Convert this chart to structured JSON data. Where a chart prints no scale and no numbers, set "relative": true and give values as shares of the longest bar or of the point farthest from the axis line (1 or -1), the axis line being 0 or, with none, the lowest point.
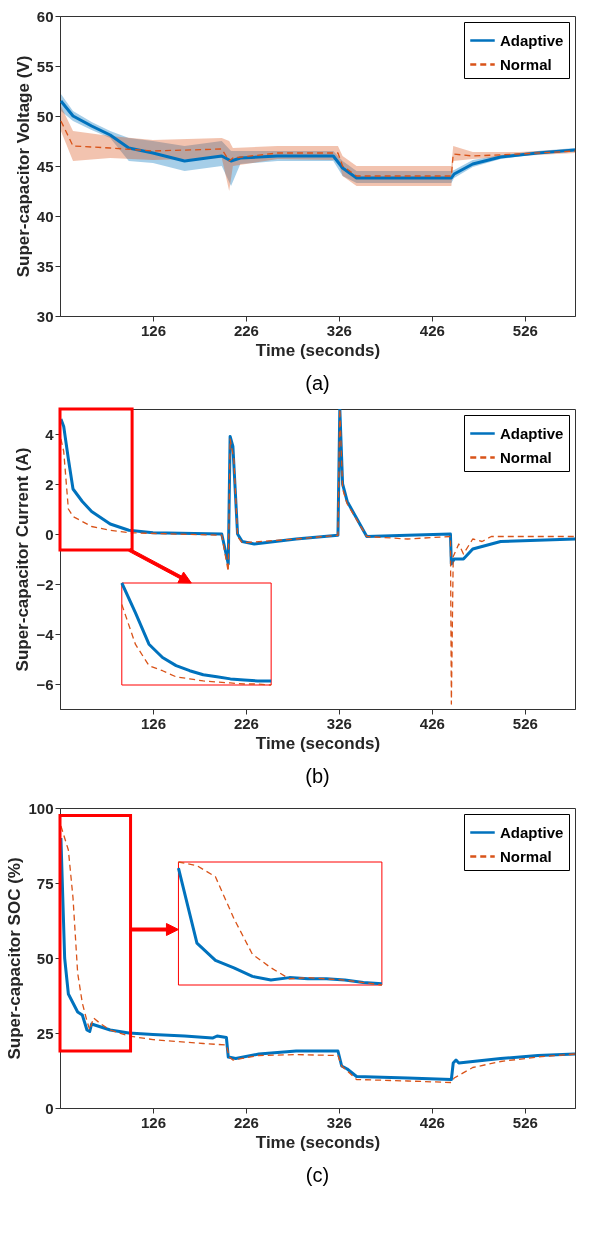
{
  "chart_data": [
    {
      "type": "line",
      "xlabel": "Time (seconds)",
      "ylabel": "Super-capacitor Voltage (V)",
      "xlim": [
        26,
        580
      ],
      "ylim": [
        30,
        60
      ],
      "xticks": [
        126,
        226,
        326,
        426,
        526
      ],
      "yticks": [
        30,
        35,
        40,
        45,
        50,
        55,
        60
      ],
      "grid": false,
      "legend": "top right",
      "annotations": [
        "(a)"
      ],
      "x": [
        27,
        40,
        60,
        80,
        100,
        126,
        160,
        200,
        210,
        220,
        260,
        320,
        330,
        345,
        400,
        447,
        450,
        470,
        500,
        540,
        580
      ],
      "series": [
        {
          "name": "Adaptive",
          "color": "#0072bd",
          "line_style": "solid",
          "values": [
            51.5,
            50.0,
            49.0,
            48.1,
            46.8,
            46.3,
            45.5,
            46.0,
            45.5,
            45.8,
            46.0,
            46.0,
            44.8,
            43.8,
            43.8,
            43.8,
            44.2,
            45.2,
            45.9,
            46.3,
            46.6
          ],
          "lower": [
            50.5,
            49.5,
            48.6,
            47.8,
            45.5,
            45.3,
            44.5,
            45.0,
            43.0,
            45.2,
            45.5,
            45.5,
            44.0,
            43.3,
            43.3,
            43.3,
            43.8,
            44.9,
            45.7,
            46.2,
            46.5
          ],
          "upper": [
            52.2,
            50.5,
            49.4,
            48.5,
            47.8,
            47.5,
            47.0,
            47.5,
            46.5,
            46.5,
            46.5,
            46.5,
            45.5,
            44.5,
            44.5,
            44.5,
            44.6,
            45.6,
            46.1,
            46.5,
            46.8
          ]
        },
        {
          "name": "Normal",
          "color": "#d95319",
          "line_style": "dashed",
          "x": [
            27,
            40,
            80,
            126,
            200,
            208,
            212,
            260,
            325,
            330,
            345,
            447,
            449,
            470,
            520,
            580
          ],
          "values": [
            49.5,
            47.0,
            46.8,
            46.5,
            46.7,
            45.5,
            45.8,
            46.3,
            46.3,
            45.0,
            44.0,
            44.0,
            46.2,
            46.0,
            46.2,
            46.5
          ],
          "lower": [
            48.5,
            45.5,
            45.8,
            45.6,
            45.8,
            42.5,
            45.0,
            45.7,
            45.6,
            44.0,
            43.0,
            43.0,
            45.5,
            45.7,
            46.0,
            46.3
          ],
          "upper": [
            51.0,
            48.5,
            48.0,
            47.6,
            47.8,
            47.5,
            46.8,
            47.0,
            47.0,
            46.0,
            45.0,
            45.0,
            47.0,
            46.4,
            46.4,
            46.7
          ]
        }
      ]
    },
    {
      "type": "line",
      "xlabel": "Time (seconds)",
      "ylabel": "Super-capacitor Current (A)",
      "xlim": [
        26,
        580
      ],
      "ylim": [
        -7,
        5
      ],
      "xticks": [
        126,
        226,
        326,
        426,
        526
      ],
      "yticks": [
        -6,
        -4,
        -2,
        0,
        2,
        4
      ],
      "grid": false,
      "legend": "top right",
      "annotations": [
        "(b)"
      ],
      "series": [
        {
          "name": "Adaptive",
          "color": "#0072bd",
          "line_style": "solid",
          "x": [
            27,
            30,
            35,
            40,
            50,
            60,
            80,
            100,
            126,
            200,
            207,
            209,
            212,
            217,
            222,
            235,
            280,
            325,
            327,
            330,
            335,
            356,
            400,
            446,
            447,
            450,
            460,
            470,
            500,
            540,
            580
          ],
          "values": [
            4.6,
            4.3,
            3.0,
            1.8,
            1.3,
            0.9,
            0.4,
            0.15,
            0.05,
            0.0,
            -1.2,
            3.9,
            3.5,
            0.0,
            -0.3,
            -0.4,
            -0.2,
            -0.05,
            5.0,
            2.0,
            1.3,
            -0.1,
            -0.05,
            0.0,
            -1.2,
            -1.0,
            -1.0,
            -0.6,
            -0.3,
            -0.25,
            -0.2
          ]
        },
        {
          "name": "Normal",
          "color": "#d95319",
          "line_style": "dashed",
          "x": [
            27,
            30,
            35,
            40,
            60,
            80,
            100,
            200,
            207,
            209,
            213,
            217,
            222,
            280,
            325,
            327,
            330,
            335,
            356,
            400,
            446,
            447,
            449,
            455,
            460,
            470,
            480,
            490,
            520,
            580
          ],
          "values": [
            3.8,
            3.3,
            1.0,
            0.7,
            0.3,
            0.15,
            0.05,
            -0.05,
            -1.5,
            3.8,
            3.0,
            -0.1,
            -0.35,
            -0.2,
            -0.05,
            5.0,
            1.8,
            1.2,
            -0.1,
            -0.2,
            -0.1,
            -6.8,
            -0.9,
            -0.4,
            -0.8,
            -0.2,
            -0.3,
            -0.1,
            -0.1,
            -0.1
          ]
        }
      ]
    },
    {
      "type": "line",
      "relative": true,
      "tick_labels": false,
      "categories": [
        null,
        null,
        null,
        null,
        null,
        null,
        null,
        null,
        null,
        null,
        null,
        null
      ],
      "series": [
        {
          "color": "#0072bd",
          "line_style": "solid",
          "values": [
            1.0,
            0.71,
            0.4,
            0.27,
            0.19,
            0.14,
            0.1,
            0.08,
            0.06,
            0.05,
            0.04,
            0.04
          ]
        },
        {
          "color": "#d95319",
          "line_style": "dashed",
          "values": [
            0.79,
            0.4,
            0.19,
            0.14,
            0.08,
            0.06,
            0.04,
            0.03,
            0.02,
            0.01,
            0.01,
            0.0
          ]
        }
      ]
    },
    {
      "type": "line",
      "xlabel": "Time (seconds)",
      "ylabel": "Super-capacitor SOC (%)",
      "xlim": [
        26,
        580
      ],
      "ylim": [
        0,
        100
      ],
      "xticks": [
        126,
        226,
        326,
        426,
        526
      ],
      "yticks": [
        0,
        25,
        50,
        75,
        100
      ],
      "grid": false,
      "legend": "top right",
      "annotations": [
        "(c)"
      ],
      "series": [
        {
          "name": "Adaptive",
          "color": "#0072bd",
          "line_style": "solid",
          "x": [
            27,
            29,
            31,
            35,
            40,
            45,
            50,
            55,
            58,
            60,
            65,
            80,
            100,
            126,
            160,
            190,
            195,
            205,
            207,
            215,
            240,
            280,
            325,
            329,
            335,
            345,
            400,
            447,
            449,
            452,
            455,
            500,
            540,
            580
          ],
          "values": [
            90,
            70,
            50,
            38,
            35,
            32,
            31,
            26,
            25.5,
            28,
            27.5,
            26,
            25,
            24.5,
            24,
            23.3,
            24,
            23.5,
            17,
            16.5,
            18,
            19,
            19,
            14,
            13,
            10.5,
            10,
            9.5,
            15,
            16,
            15,
            16.5,
            17.5,
            18
          ]
        },
        {
          "name": "Normal",
          "color": "#d95319",
          "line_style": "dashed",
          "x": [
            27,
            30,
            35,
            40,
            45,
            50,
            55,
            58,
            62,
            70,
            80,
            100,
            126,
            180,
            205,
            208,
            212,
            240,
            280,
            325,
            329,
            345,
            400,
            447,
            450,
            470,
            500,
            540,
            580
          ],
          "values": [
            94,
            91,
            86,
            70,
            45,
            35,
            29,
            26,
            30,
            28,
            26,
            24,
            22.8,
            21.5,
            21,
            17,
            16,
            17.5,
            17.8,
            17.5,
            14,
            9.5,
            9,
            8.5,
            10,
            13.5,
            15.5,
            17,
            18
          ]
        }
      ]
    },
    {
      "type": "line",
      "relative": true,
      "tick_labels": false,
      "categories": [
        null,
        null,
        null,
        null,
        null,
        null,
        null,
        null,
        null,
        null,
        null,
        null
      ],
      "series": [
        {
          "color": "#0072bd",
          "line_style": "solid",
          "values": [
            0.95,
            0.34,
            0.2,
            0.14,
            0.07,
            0.04,
            0.06,
            0.05,
            0.05,
            0.04,
            0.02,
            0.01
          ]
        },
        {
          "color": "#d95319",
          "line_style": "dashed",
          "values": [
            1.0,
            0.97,
            0.88,
            0.54,
            0.25,
            0.14,
            0.05,
            0.06,
            0.05,
            0.04,
            0.02,
            0.0
          ]
        }
      ]
    }
  ]
}
